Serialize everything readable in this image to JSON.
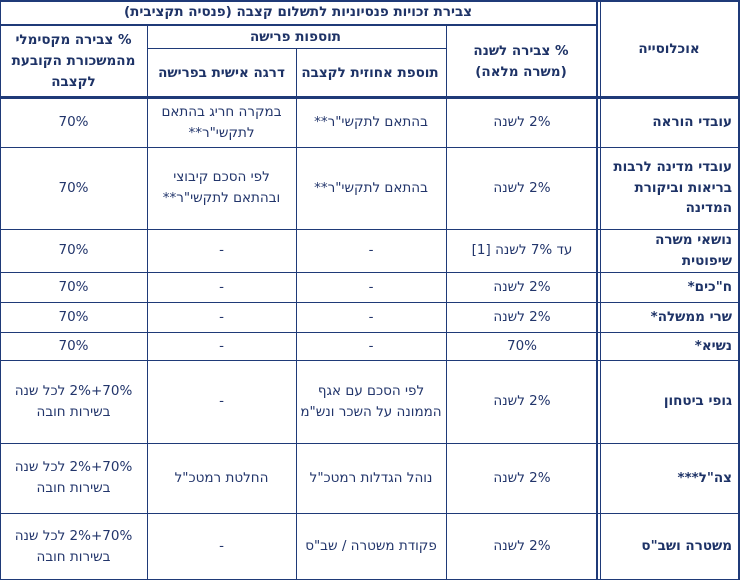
{
  "table": {
    "super_header": "צבירת זכויות פנסיוניות לתשלום קצבה (פנסיה תקציבית)",
    "headers": {
      "population": "אוכלוסייה",
      "accrual": "% צבירה לשנה (משרה מלאה)",
      "retirement_supplements": "תוספות פרישה",
      "percent_supplement": "תוספת אחוזית לקצבה",
      "personal_grade": "דרגה אישית בפרישה",
      "max_accrual": "% צבירה מקסימלי מהמשכורת הקובעת לקצבה"
    },
    "rows": [
      {
        "population": "עובדי הוראה",
        "accrual": "2% לשנה",
        "percent_supplement": "בהתאם לתקשי\"ר**",
        "personal_grade": "במקרה חריג בהתאם לתקשי\"ר**",
        "max_accrual": "70%"
      },
      {
        "population": "עובדי מדינה לרבות בריאות וביקורת המדינה",
        "accrual": "2% לשנה",
        "percent_supplement": "בהתאם לתקשי\"ר**",
        "personal_grade": "לפי הסכם קיבוצי ובהתאם לתקשי\"ר**",
        "max_accrual": "70%"
      },
      {
        "population": "נושאי משרה שיפוטית",
        "accrual": "עד 7% לשנה [1]",
        "percent_supplement": "-",
        "personal_grade": "-",
        "max_accrual": "70%"
      },
      {
        "population": "ח\"כים*",
        "accrual": "2% לשנה",
        "percent_supplement": "-",
        "personal_grade": "-",
        "max_accrual": "70%"
      },
      {
        "population": "שרי ממשלה*",
        "accrual": "2% לשנה",
        "percent_supplement": "-",
        "personal_grade": "-",
        "max_accrual": "70%"
      },
      {
        "population": "נשיא*",
        "accrual": "70%",
        "percent_supplement": "-",
        "personal_grade": "-",
        "max_accrual": "70%"
      },
      {
        "population": "גופי ביטחון",
        "accrual": "2% לשנה",
        "percent_supplement": "לפי הסכם עם אגף הממונה על השכר ונש\"מ",
        "personal_grade": "-",
        "max_accrual": "70%+2% לכל שנה בשירות חובה"
      },
      {
        "population": "צה\"ל***",
        "accrual": "2% לשנה",
        "percent_supplement": "נוהל הגדלות רמטכ\"ל",
        "personal_grade": "החלטת רמטכ\"ל",
        "max_accrual": "70%+2% לכל שנה בשירות חובה"
      },
      {
        "population": "משטרה ושב\"ס",
        "accrual": "2% לשנה",
        "percent_supplement": "פקודת משטרה / שב\"ס",
        "personal_grade": "-",
        "max_accrual": "70%+2% לכל שנה בשירות חובה"
      }
    ]
  }
}
